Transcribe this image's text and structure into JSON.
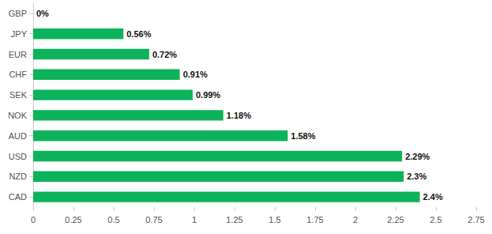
{
  "chart_data": {
    "type": "bar",
    "orientation": "horizontal",
    "categories": [
      "GBP",
      "JPY",
      "EUR",
      "CHF",
      "SEK",
      "NOK",
      "AUD",
      "USD",
      "NZD",
      "CAD"
    ],
    "values": [
      0,
      0.56,
      0.72,
      0.91,
      0.99,
      1.18,
      1.58,
      2.29,
      2.3,
      2.4
    ],
    "value_labels": [
      "0%",
      "0.56%",
      "0.72%",
      "0.91%",
      "0.99%",
      "1.18%",
      "1.58%",
      "2.29%",
      "2.3%",
      "2.4%"
    ],
    "color": "#0cb35b",
    "xlim": [
      0,
      2.75
    ],
    "xticks": [
      0,
      0.25,
      0.5,
      0.75,
      1,
      1.25,
      1.5,
      1.75,
      2,
      2.25,
      2.5,
      2.75
    ],
    "grid": false,
    "data_labels": true
  }
}
